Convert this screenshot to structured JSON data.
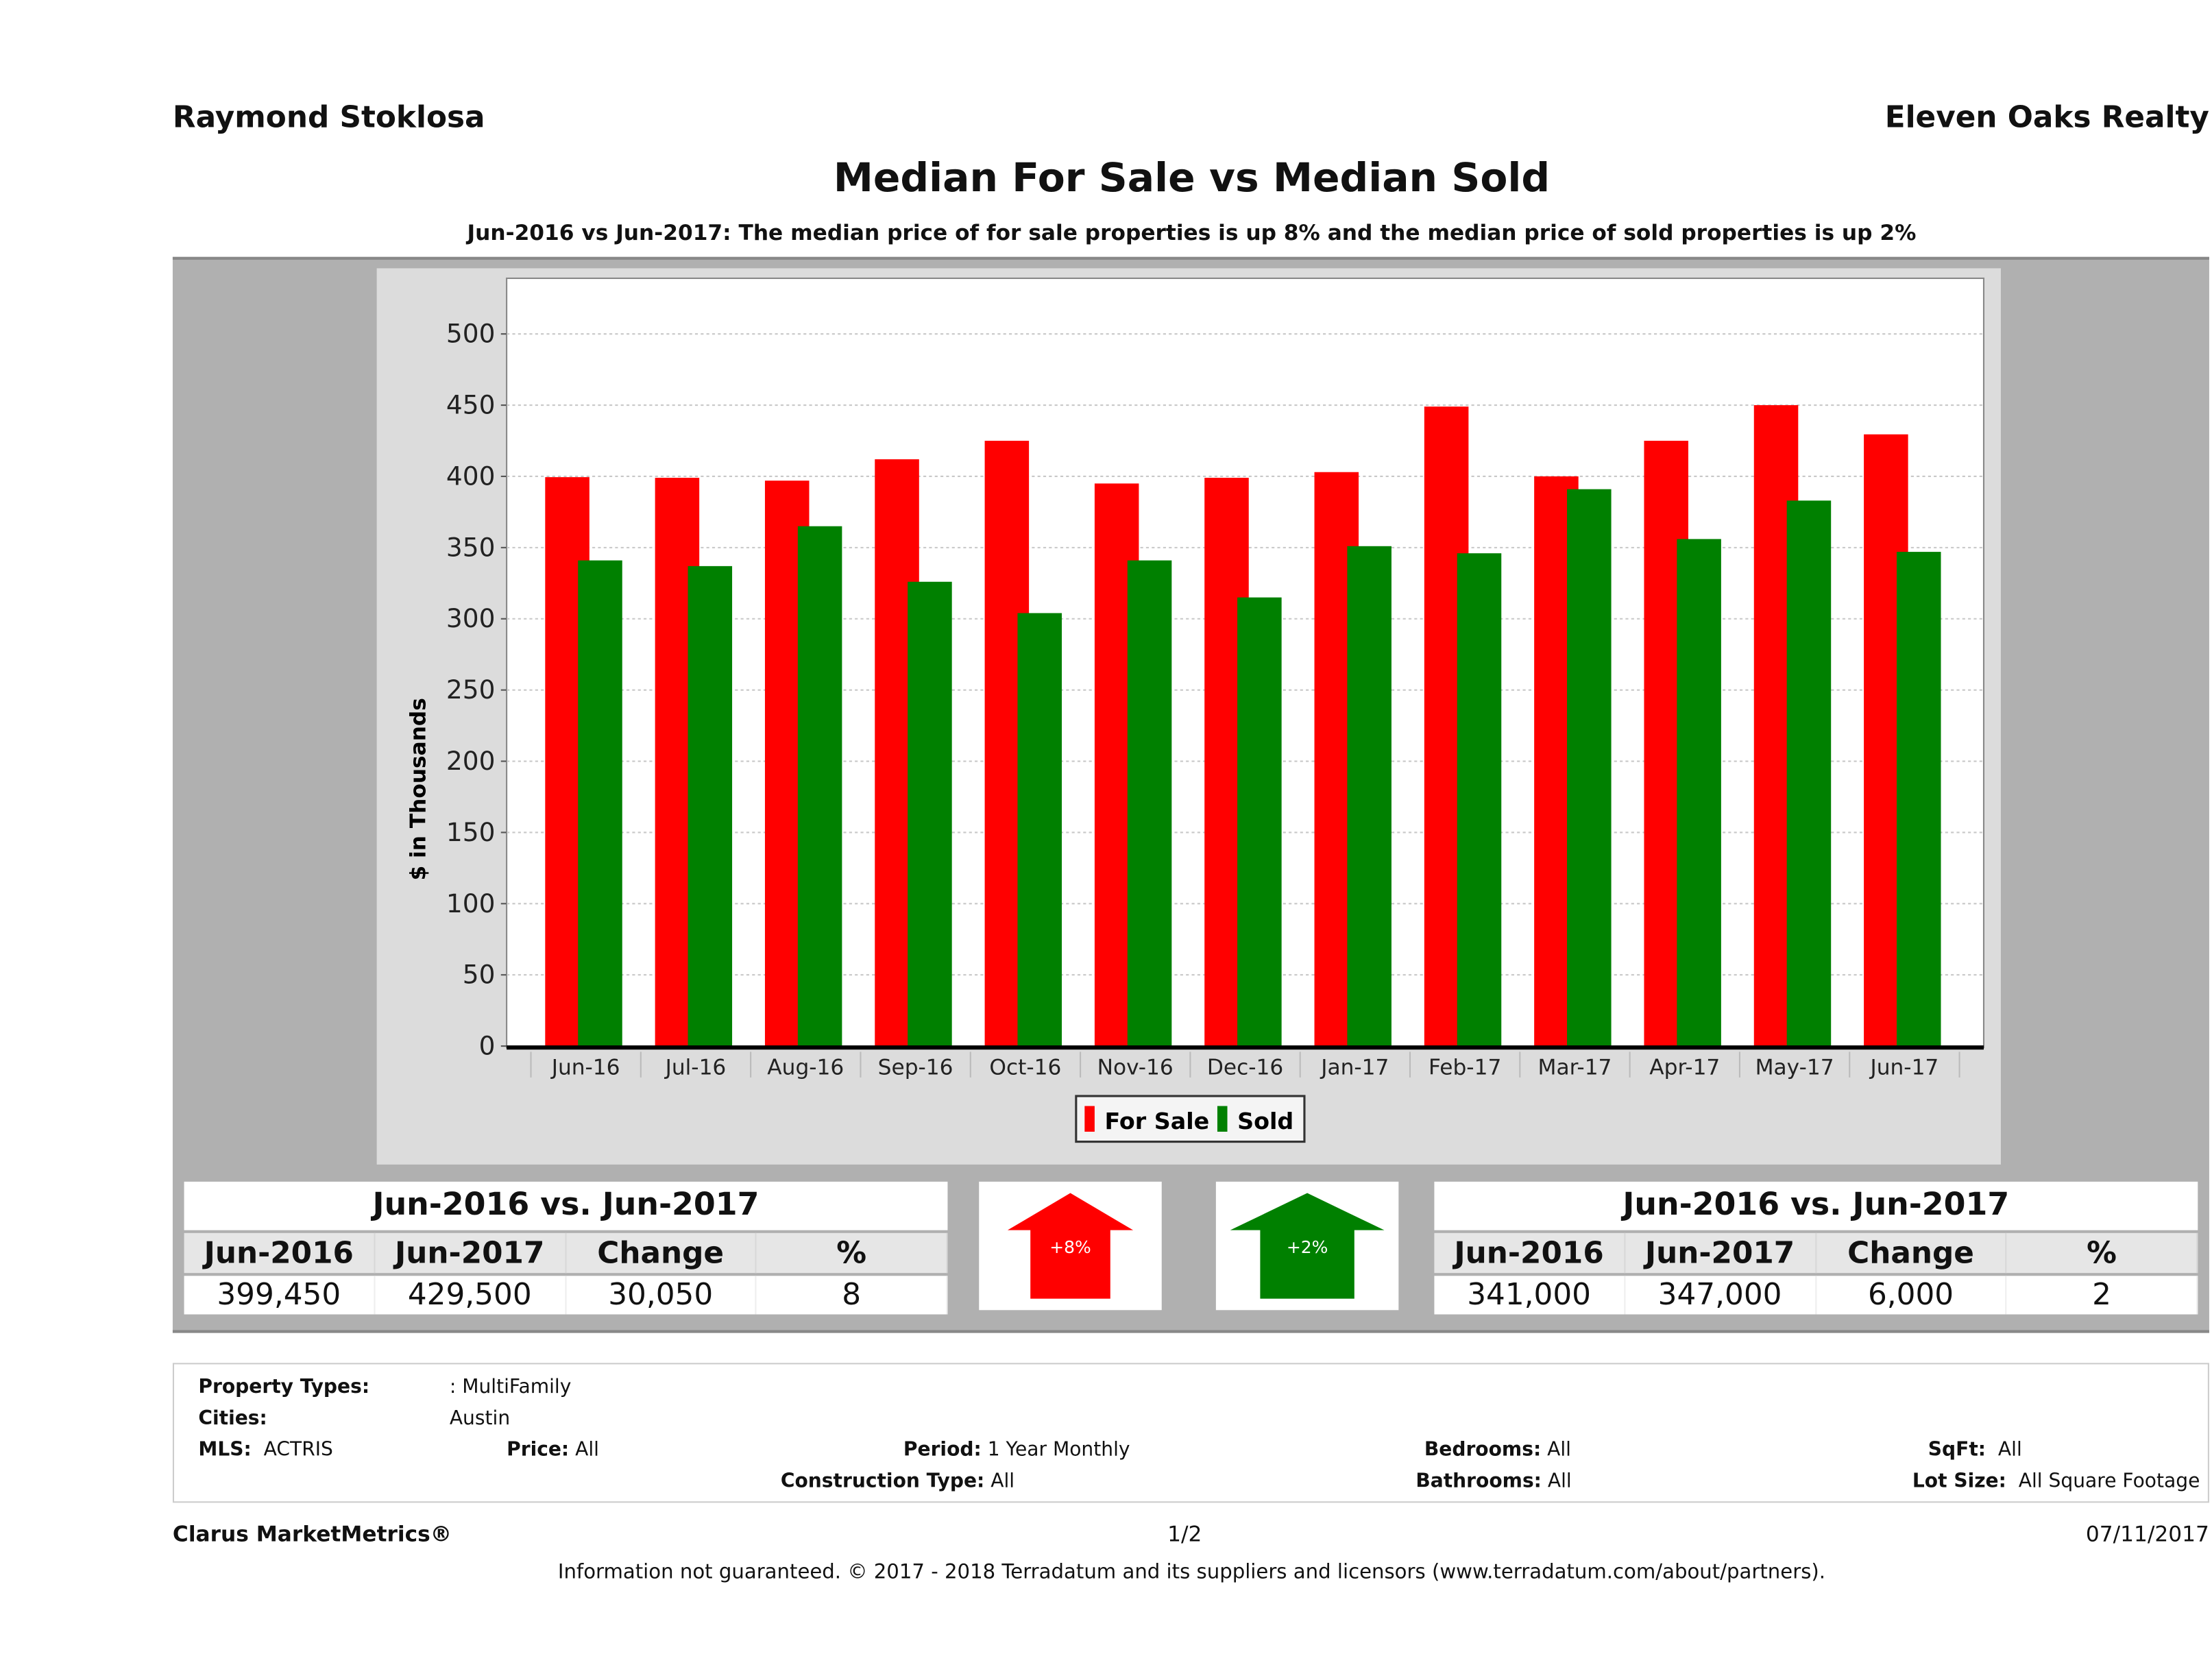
{
  "header": {
    "agent_name": "Raymond Stoklosa",
    "brokerage": "Eleven Oaks Realty",
    "title": "Median For Sale vs Median Sold",
    "subtitle": "Jun-2016 vs Jun-2017: The median price of for sale properties is up 8% and the median price of sold properties is up 2%"
  },
  "chart_data": {
    "type": "bar",
    "title": "Median For Sale vs Median Sold",
    "xlabel": "",
    "ylabel": "$ in Thousands",
    "ylim": [
      0,
      530
    ],
    "yticks": [
      0,
      50,
      100,
      150,
      200,
      250,
      300,
      350,
      400,
      450,
      500
    ],
    "grid": true,
    "legend": "bottom-center",
    "categories": [
      "Jun-16",
      "Jul-16",
      "Aug-16",
      "Sep-16",
      "Oct-16",
      "Nov-16",
      "Dec-16",
      "Jan-17",
      "Feb-17",
      "Mar-17",
      "Apr-17",
      "May-17",
      "Jun-17"
    ],
    "series": [
      {
        "name": "For Sale",
        "color": "#ff0000",
        "values": [
          399.45,
          399,
          397,
          412,
          425,
          395,
          399,
          403,
          449,
          400,
          425,
          450,
          429.5
        ]
      },
      {
        "name": "Sold",
        "color": "#008000",
        "values": [
          341,
          337,
          365,
          326,
          304,
          341,
          315,
          351,
          346,
          391,
          356,
          383,
          347
        ]
      }
    ]
  },
  "for_sale_stats": {
    "title": "Jun-2016 vs. Jun-2017",
    "headers": [
      "Jun-2016",
      "Jun-2017",
      "Change",
      "%"
    ],
    "values": [
      "399,450",
      "429,500",
      "30,050",
      "8"
    ],
    "arrow_label": "+8%",
    "arrow_color": "#ff0000"
  },
  "sold_stats": {
    "title": "Jun-2016 vs. Jun-2017",
    "headers": [
      "Jun-2016",
      "Jun-2017",
      "Change",
      "%"
    ],
    "values": [
      "341,000",
      "347,000",
      "6,000",
      "2"
    ],
    "arrow_label": "+2%",
    "arrow_color": "#008000"
  },
  "filters": {
    "property_types_label": "Property Types:",
    "property_types_value": ": MultiFamily",
    "cities_label": "Cities:",
    "cities_value": "Austin",
    "mls_label": "MLS:",
    "mls_value": "ACTRIS",
    "price_label": "Price:",
    "price_value": "All",
    "period_label": "Period:",
    "period_value": "1 Year Monthly",
    "bedrooms_label": "Bedrooms:",
    "bedrooms_value": "All",
    "sqft_label": "SqFt:",
    "sqft_value": "All",
    "construction_label": "Construction Type:",
    "construction_value": "All",
    "bathrooms_label": "Bathrooms:",
    "bathrooms_value": "All",
    "lot_size_label": "Lot Size:",
    "lot_size_value": "All Square Footage"
  },
  "footer": {
    "product": "Clarus MarketMetrics®",
    "page": "1/2",
    "date": "07/11/2017",
    "disclaimer": "Information not guaranteed. © 2017 - 2018 Terradatum and its suppliers and licensors (www.terradatum.com/about/partners)."
  }
}
